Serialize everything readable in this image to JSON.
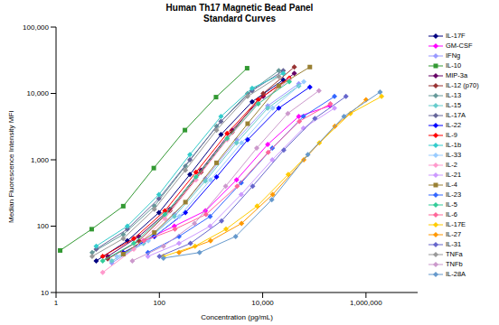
{
  "chart_data": {
    "type": "line",
    "title": "Human Th17 Magnetic Bead Panel",
    "subtitle": "Standard Curves",
    "x_label": "Concentration (pg/mL)",
    "y_label": "Median Fluorescence Intensity MFI",
    "log": true,
    "grid": false,
    "legend": "right",
    "marker": "diamond",
    "xlim": [
      1,
      10000000
    ],
    "xticks": [
      1,
      100,
      {
        "value": 10000,
        "label": "10,000"
      },
      {
        "value": 1000000,
        "label": "1,000,000"
      }
    ],
    "ylim": [
      10,
      100000
    ],
    "yticks": [
      10,
      100,
      {
        "value": 1000,
        "label": "1,000"
      },
      {
        "value": 10000,
        "label": "10,000"
      },
      {
        "value": 100000,
        "label": "100,000"
      }
    ],
    "series": [
      {
        "name": "IL-17F",
        "color": "#000080",
        "x": [
          6,
          24,
          98,
          390,
          1560,
          6250,
          25000
        ],
        "values": [
          30,
          60,
          160,
          600,
          2400,
          7500,
          16000
        ]
      },
      {
        "name": "GM-CSF",
        "color": "#ff00ff",
        "x": [
          49,
          195,
          780,
          3125,
          12500,
          50000,
          200000
        ],
        "values": [
          60,
          100,
          170,
          500,
          1700,
          4500,
          6500
        ]
      },
      {
        "name": "IFNg",
        "color": "#9999ff",
        "x": [
          12,
          49,
          195,
          780,
          3125,
          12500,
          50000
        ],
        "values": [
          28,
          55,
          150,
          520,
          2000,
          6500,
          14000
        ]
      },
      {
        "name": "IL-10",
        "color": "#339933",
        "marker": "square",
        "x": [
          1.2,
          4.9,
          20,
          78,
          313,
          1250,
          5000
        ],
        "values": [
          43,
          90,
          200,
          750,
          2800,
          8800,
          24000
        ]
      },
      {
        "name": "MIP-3a",
        "color": "#660066",
        "x": [
          10,
          40,
          160,
          640,
          2560,
          10240,
          40960
        ],
        "values": [
          35,
          70,
          180,
          700,
          2800,
          9000,
          20000
        ]
      },
      {
        "name": "IL-12 (p70)",
        "color": "#993333",
        "x": [
          10,
          40,
          160,
          640,
          2560,
          10240,
          40960
        ],
        "values": [
          32,
          60,
          170,
          650,
          2600,
          10000,
          25000
        ]
      },
      {
        "name": "IL-13",
        "color": "#669999",
        "x": [
          5,
          20,
          80,
          320,
          1280,
          5120,
          20480
        ],
        "values": [
          40,
          75,
          200,
          800,
          3200,
          10000,
          22000
        ]
      },
      {
        "name": "IL-15",
        "color": "#66cccc",
        "x": [
          12,
          49,
          195,
          780,
          3125,
          12500,
          50000
        ],
        "values": [
          30,
          55,
          140,
          480,
          1800,
          6000,
          13000
        ]
      },
      {
        "name": "IL-17A",
        "color": "#666699",
        "x": [
          6,
          24,
          98,
          390,
          1560,
          6250,
          25000
        ],
        "values": [
          45,
          90,
          260,
          1000,
          3800,
          11000,
          22000
        ]
      },
      {
        "name": "IL-22",
        "color": "#0000ff",
        "x": [
          20,
          80,
          320,
          1280,
          5120,
          20480,
          81920
        ],
        "values": [
          40,
          70,
          160,
          550,
          2000,
          6000,
          12500
        ]
      },
      {
        "name": "IL-9",
        "color": "#ff0000",
        "x": [
          8,
          32,
          128,
          512,
          2048,
          8192,
          32768
        ],
        "values": [
          35,
          65,
          170,
          650,
          2500,
          8000,
          17000
        ]
      },
      {
        "name": "IL-1b",
        "color": "#33cccc",
        "x": [
          6,
          24,
          98,
          390,
          1560,
          6250,
          25000
        ],
        "values": [
          50,
          100,
          300,
          1200,
          4500,
          12000,
          20000
        ]
      },
      {
        "name": "IL-33",
        "color": "#99ccff",
        "x": [
          15,
          61,
          244,
          977,
          3906,
          15625,
          62500
        ],
        "values": [
          35,
          60,
          140,
          500,
          1800,
          6000,
          15000
        ]
      },
      {
        "name": "IL-2",
        "color": "#ff99cc",
        "x": [
          8,
          32,
          128,
          512,
          2048,
          8192,
          32768
        ],
        "values": [
          20,
          45,
          130,
          500,
          2000,
          7000,
          16000
        ]
      },
      {
        "name": "IL-21",
        "color": "#cc99ff",
        "x": [
          60,
          240,
          960,
          3840,
          15360,
          61440,
          245760
        ],
        "values": [
          35,
          55,
          100,
          300,
          1000,
          3000,
          6000
        ]
      },
      {
        "name": "IL-4",
        "color": "#998033",
        "marker": "square",
        "x": [
          20,
          80,
          320,
          1280,
          5120,
          20480,
          81920
        ],
        "values": [
          38,
          80,
          230,
          900,
          3500,
          13000,
          25000
        ]
      },
      {
        "name": "IL-23",
        "color": "#3366ff",
        "x": [
          60,
          240,
          960,
          3840,
          15360,
          61440,
          245760
        ],
        "values": [
          40,
          70,
          140,
          450,
          1500,
          4500,
          9000
        ]
      },
      {
        "name": "IL-5",
        "color": "#33cc99",
        "x": [
          8,
          32,
          128,
          512,
          2048,
          8192,
          32768
        ],
        "values": [
          30,
          55,
          150,
          550,
          2100,
          7000,
          15000
        ]
      },
      {
        "name": "IL-6",
        "color": "#ff6699",
        "x": [
          50,
          200,
          800,
          3200,
          12800,
          51200,
          204800
        ],
        "values": [
          60,
          90,
          150,
          400,
          1300,
          3800,
          7000
        ]
      },
      {
        "name": "IL-17E",
        "color": "#ffcc00",
        "x": [
          120,
          490,
          1950,
          7800,
          31250,
          125000,
          500000,
          2000000
        ],
        "values": [
          35,
          50,
          90,
          200,
          600,
          1800,
          5000,
          9000
        ]
      },
      {
        "name": "IL-27",
        "color": "#ff9900",
        "x": [
          240,
          980,
          3900,
          15600,
          62500,
          250000,
          1000000
        ],
        "values": [
          40,
          60,
          110,
          300,
          1000,
          3200,
          8000
        ]
      },
      {
        "name": "IL-31",
        "color": "#6666cc",
        "x": [
          100,
          400,
          1600,
          6400,
          25600,
          102400,
          409600
        ],
        "values": [
          35,
          55,
          120,
          400,
          1400,
          4200,
          9000
        ]
      },
      {
        "name": "TNFa",
        "color": "#999999",
        "x": [
          5,
          20,
          80,
          320,
          1280,
          5120,
          20480
        ],
        "values": [
          35,
          65,
          180,
          700,
          2800,
          9000,
          18000
        ]
      },
      {
        "name": "TNFb",
        "color": "#cc99cc",
        "x": [
          30,
          120,
          480,
          1920,
          7680,
          30720,
          122880
        ],
        "values": [
          30,
          50,
          110,
          400,
          1500,
          5000,
          11000
        ]
      },
      {
        "name": "IL-28A",
        "color": "#6699cc",
        "x": [
          120,
          600,
          3000,
          15000,
          75000,
          375000,
          1875000
        ],
        "values": [
          33,
          40,
          70,
          250,
          1200,
          4500,
          10500
        ]
      }
    ]
  }
}
